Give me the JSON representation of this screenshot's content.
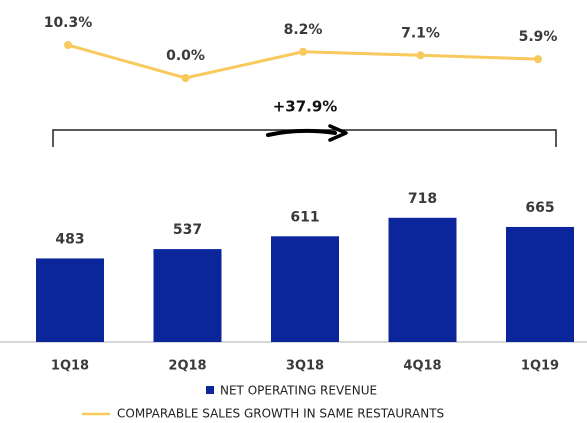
{
  "chart_data": {
    "type": "bar",
    "categories": [
      "1Q18",
      "2Q18",
      "3Q18",
      "4Q18",
      "1Q19"
    ],
    "series": [
      {
        "name": "NET OPERATING REVENUE",
        "type": "bar",
        "color": "#0b259a",
        "values": [
          483,
          537,
          611,
          718,
          665
        ]
      },
      {
        "name": "COMPARABLE SALES GROWTH IN SAME RESTAURANTS",
        "type": "line",
        "axis": "y2",
        "color": "#f8c95c",
        "values": [
          10.3,
          0.0,
          8.2,
          7.1,
          5.9
        ],
        "value_labels": [
          "10.3%",
          "0.0%",
          "8.2%",
          "7.1%",
          "5.9%"
        ]
      }
    ],
    "ylim": [
      0,
      1000
    ],
    "y2lim": [
      0,
      12
    ],
    "annotation": "+37.9%"
  }
}
